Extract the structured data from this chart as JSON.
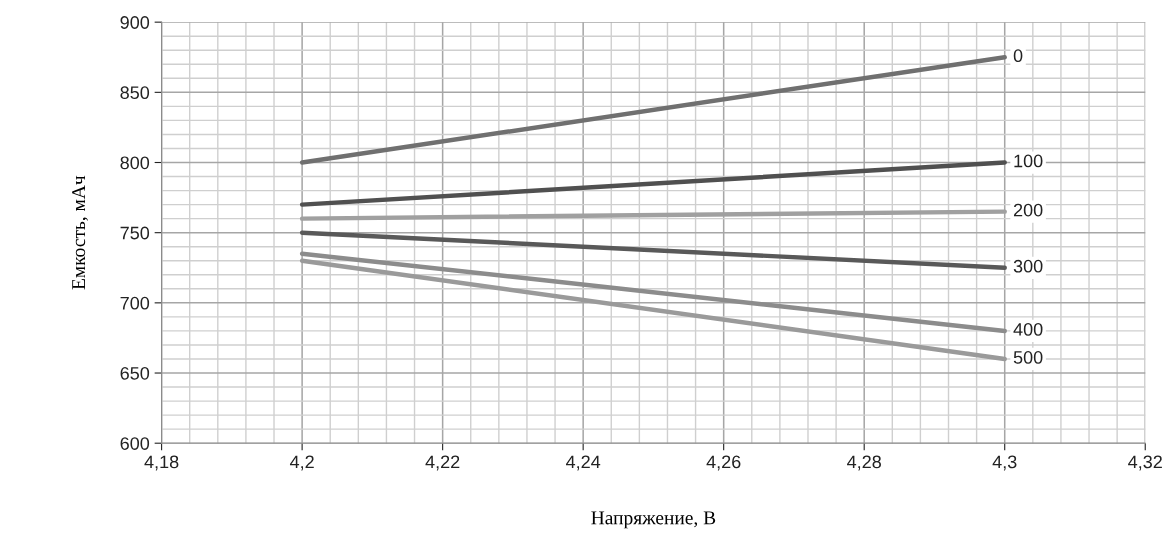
{
  "chart_data": {
    "type": "line",
    "xlabel": "Напряжение, В",
    "ylabel": "Емкость, мАч",
    "x": [
      4.2,
      4.3
    ],
    "series": [
      {
        "name": "0",
        "color": "#707070",
        "values": [
          800,
          875
        ]
      },
      {
        "name": "100",
        "color": "#505050",
        "values": [
          770,
          800
        ]
      },
      {
        "name": "200",
        "color": "#a0a0a0",
        "values": [
          760,
          765
        ]
      },
      {
        "name": "300",
        "color": "#595959",
        "values": [
          750,
          725
        ]
      },
      {
        "name": "400",
        "color": "#8c8c8c",
        "values": [
          735,
          680
        ]
      },
      {
        "name": "500",
        "color": "#9a9a9a",
        "values": [
          730,
          660
        ]
      }
    ],
    "xlim": [
      4.18,
      4.32
    ],
    "xticks": [
      {
        "value": 4.18,
        "label": "4,18"
      },
      {
        "value": 4.2,
        "label": "4,2"
      },
      {
        "value": 4.22,
        "label": "4,22"
      },
      {
        "value": 4.24,
        "label": "4,24"
      },
      {
        "value": 4.26,
        "label": "4,26"
      },
      {
        "value": 4.28,
        "label": "4,28"
      },
      {
        "value": 4.3,
        "label": "4,3"
      },
      {
        "value": 4.32,
        "label": "4,32"
      }
    ],
    "ylim": [
      600,
      900
    ],
    "yticks": [
      600,
      650,
      700,
      750,
      800,
      850,
      900
    ],
    "grid": true,
    "legend": false,
    "marker": "none",
    "line_style": "solid"
  }
}
